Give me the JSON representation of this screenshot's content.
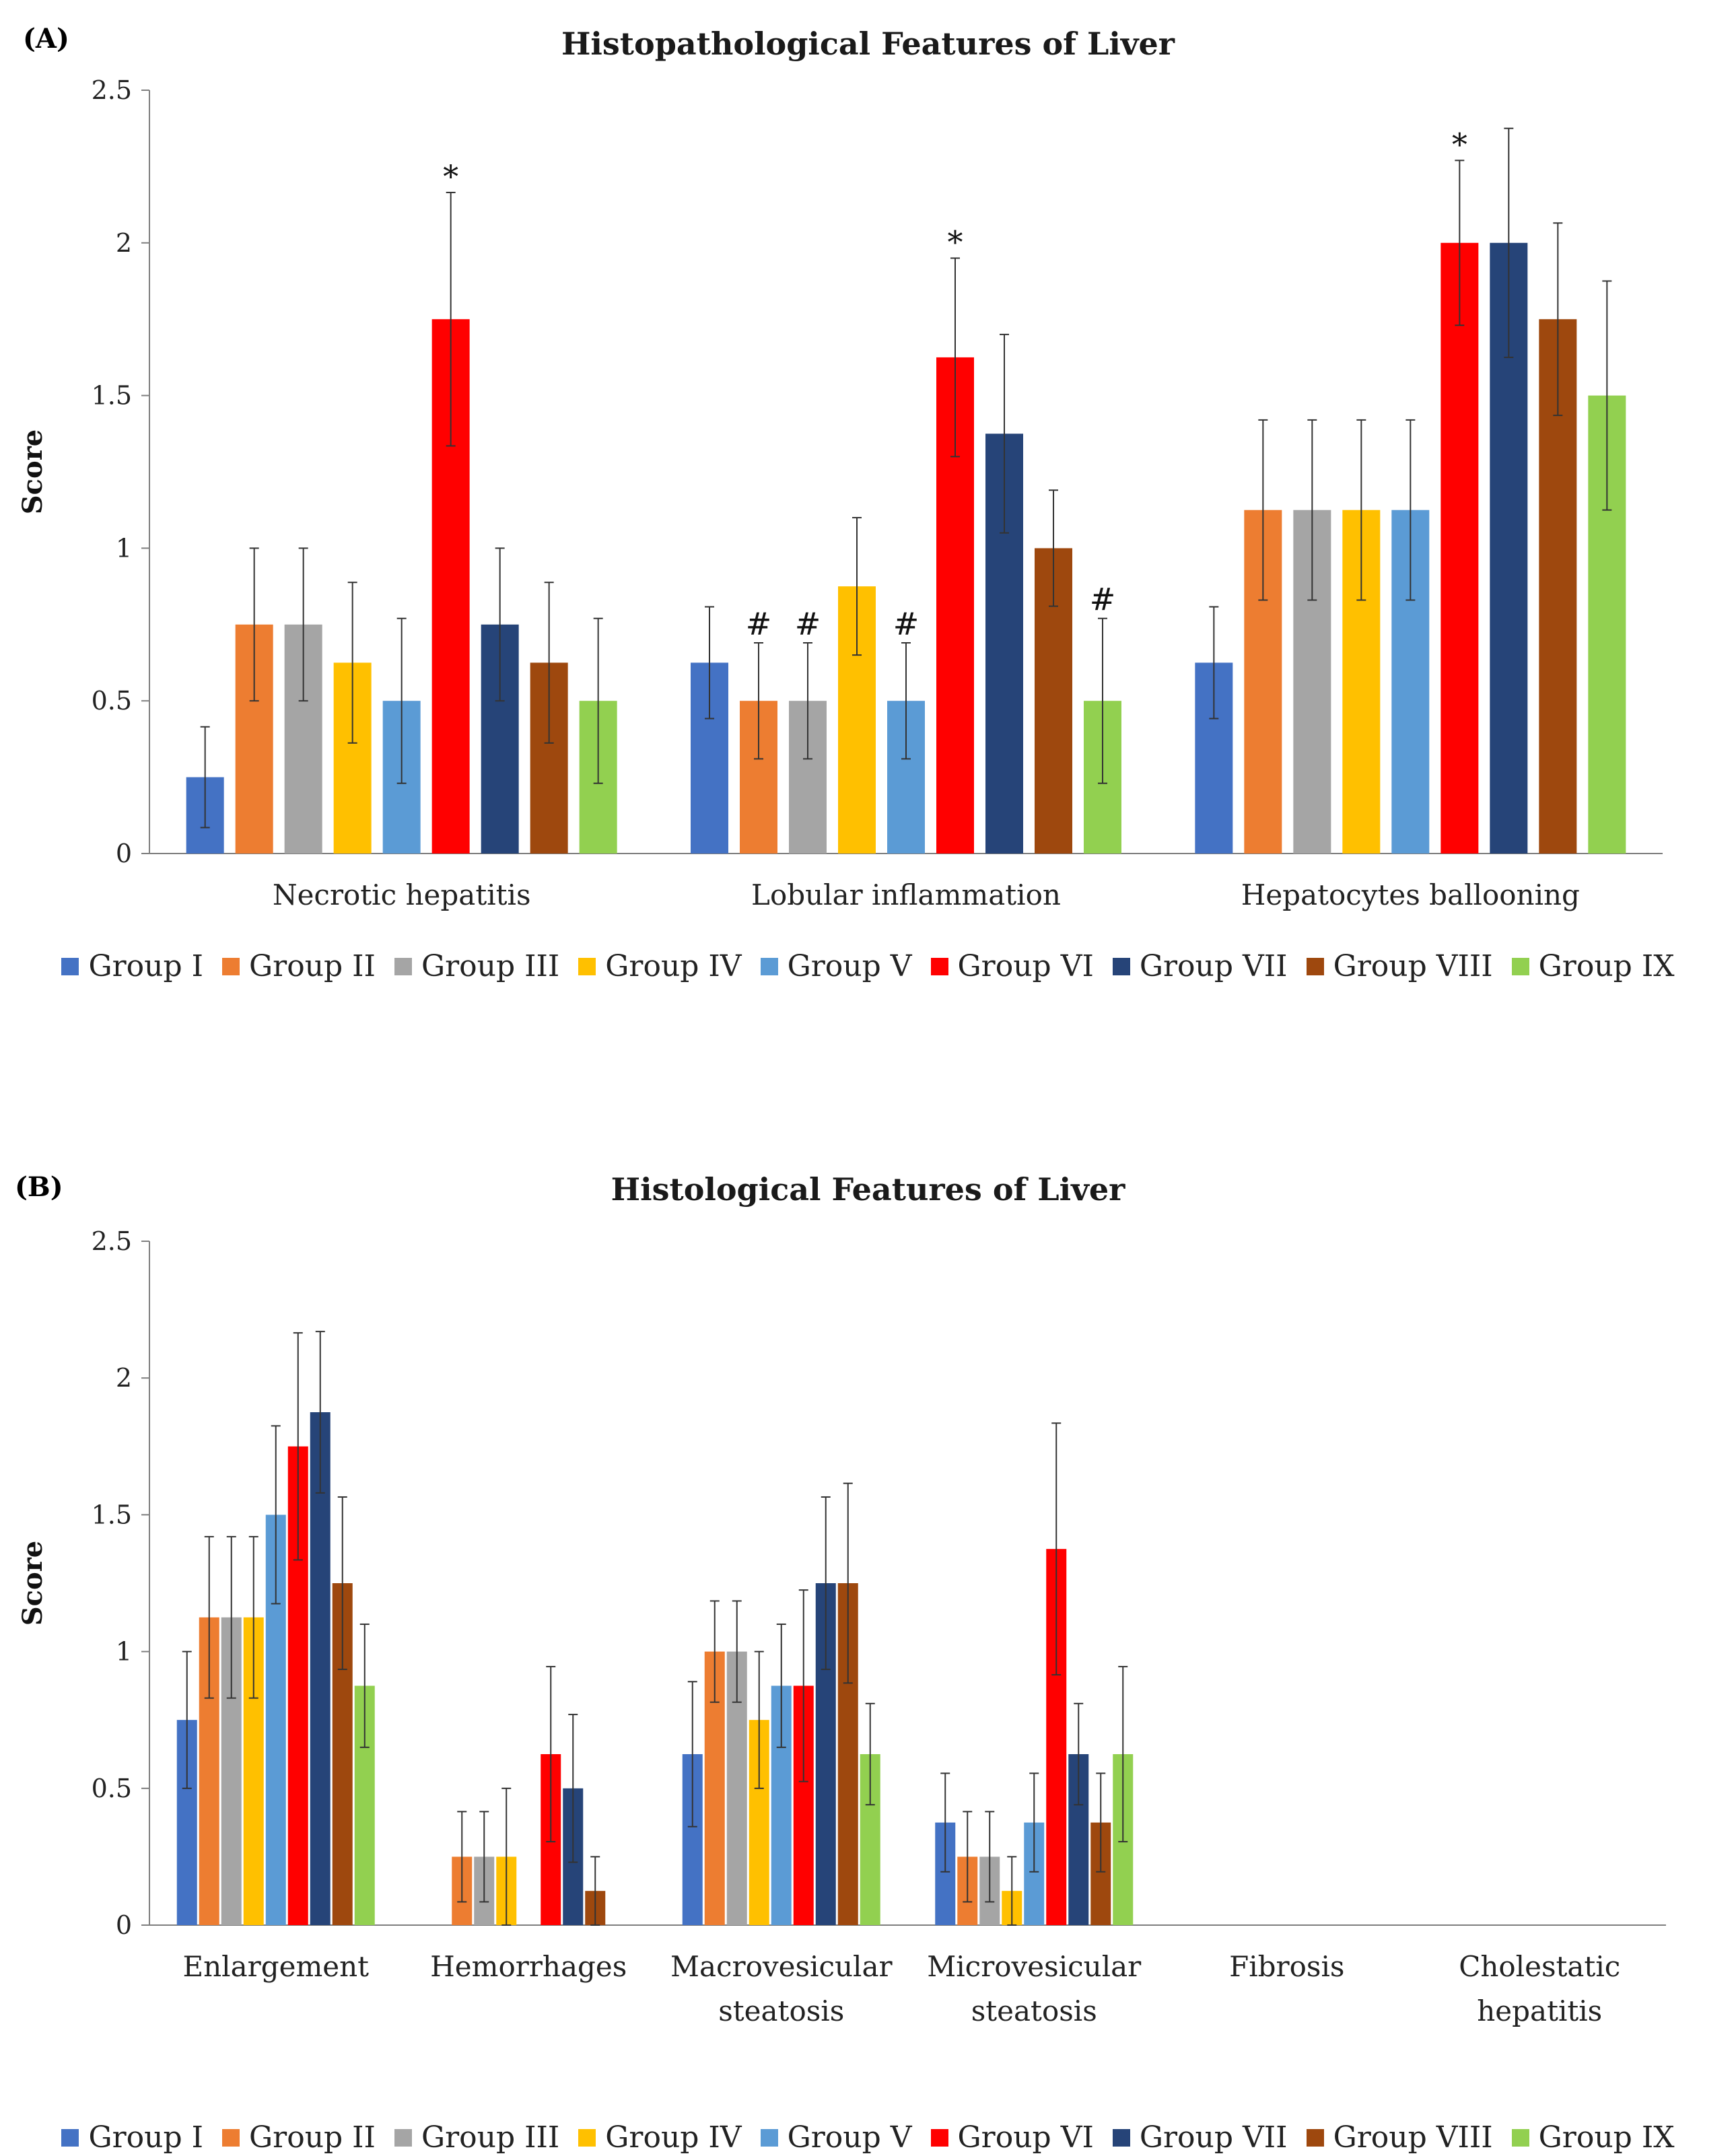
{
  "chart_data": [
    {
      "panel": "(A)",
      "type": "bar",
      "title": "Histopathological Features of Liver",
      "ylabel": "Score",
      "ylim": [
        0,
        2.5
      ],
      "yticks": [
        "0",
        "0.5",
        "1",
        "1.5",
        "2",
        "2.5"
      ],
      "grid": false,
      "legend_position": "bottom",
      "categories": [
        [
          "Necrotic hepatitis"
        ],
        [
          "Lobular inflammation"
        ],
        [
          "Hepatocytes ballooning"
        ]
      ],
      "series": [
        {
          "name": "Group I",
          "color": "#4472C4",
          "values": [
            0.25,
            0.625,
            0.625
          ],
          "errors": [
            0.165,
            0.183,
            0.183
          ],
          "markers": [
            "",
            "",
            ""
          ]
        },
        {
          "name": "Group II",
          "color": "#ED7D31",
          "values": [
            0.75,
            0.5,
            1.125
          ],
          "errors": [
            0.25,
            0.19,
            0.295
          ],
          "markers": [
            "",
            "#",
            ""
          ]
        },
        {
          "name": "Group III",
          "color": "#A5A5A5",
          "values": [
            0.75,
            0.5,
            1.125
          ],
          "errors": [
            0.25,
            0.19,
            0.295
          ],
          "markers": [
            "",
            "#",
            ""
          ]
        },
        {
          "name": "Group IV",
          "color": "#FFC000",
          "values": [
            0.625,
            0.875,
            1.125
          ],
          "errors": [
            0.263,
            0.225,
            0.295
          ],
          "markers": [
            "",
            "",
            ""
          ]
        },
        {
          "name": "Group V",
          "color": "#5B9BD5",
          "values": [
            0.5,
            0.5,
            1.125
          ],
          "errors": [
            0.27,
            0.19,
            0.295
          ],
          "markers": [
            "",
            "#",
            ""
          ]
        },
        {
          "name": "Group VI",
          "color": "#FF0000",
          "values": [
            1.75,
            1.625,
            2.0
          ],
          "errors": [
            0.415,
            0.325,
            0.27
          ],
          "markers": [
            "*",
            "*",
            "*"
          ]
        },
        {
          "name": "Group VII",
          "color": "#264478",
          "values": [
            0.75,
            1.375,
            2.0
          ],
          "errors": [
            0.25,
            0.325,
            0.375
          ],
          "markers": [
            "",
            "",
            ""
          ]
        },
        {
          "name": "Group VIII",
          "color": "#9E480E",
          "values": [
            0.625,
            1.0,
            1.75
          ],
          "errors": [
            0.263,
            0.19,
            0.315
          ],
          "markers": [
            "",
            "",
            ""
          ]
        },
        {
          "name": "Group IX",
          "color": "#92D050",
          "values": [
            0.5,
            0.5,
            1.5
          ],
          "errors": [
            0.27,
            0.27,
            0.375
          ],
          "markers": [
            "",
            "#",
            ""
          ]
        }
      ]
    },
    {
      "panel": "(B)",
      "type": "bar",
      "title": "Histological Features of Liver",
      "ylabel": "Score",
      "ylim": [
        0,
        2.5
      ],
      "yticks": [
        "0",
        "0.5",
        "1",
        "1.5",
        "2",
        "2.5"
      ],
      "grid": false,
      "legend_position": "bottom",
      "categories": [
        [
          "Enlargement"
        ],
        [
          "Hemorrhages"
        ],
        [
          "Macrovesicular",
          "steatosis"
        ],
        [
          "Microvesicular",
          "steatosis"
        ],
        [
          "Fibrosis"
        ],
        [
          "Cholestatic",
          "hepatitis"
        ]
      ],
      "series": [
        {
          "name": "Group I",
          "color": "#4472C4",
          "values": [
            0.75,
            0,
            0.625,
            0.375,
            0,
            0
          ],
          "errors": [
            0.25,
            0,
            0.265,
            0.18,
            0,
            0
          ]
        },
        {
          "name": "Group II",
          "color": "#ED7D31",
          "values": [
            1.125,
            0.25,
            1.0,
            0.25,
            0,
            0
          ],
          "errors": [
            0.295,
            0.165,
            0.185,
            0.165,
            0,
            0
          ]
        },
        {
          "name": "Group III",
          "color": "#A5A5A5",
          "values": [
            1.125,
            0.25,
            1.0,
            0.25,
            0,
            0
          ],
          "errors": [
            0.295,
            0.165,
            0.185,
            0.165,
            0,
            0
          ]
        },
        {
          "name": "Group IV",
          "color": "#FFC000",
          "values": [
            1.125,
            0.25,
            0.75,
            0.125,
            0,
            0
          ],
          "errors": [
            0.295,
            0.25,
            0.25,
            0.125,
            0,
            0
          ]
        },
        {
          "name": "Group V",
          "color": "#5B9BD5",
          "values": [
            1.5,
            0,
            0.875,
            0.375,
            0,
            0
          ],
          "errors": [
            0.325,
            0,
            0.225,
            0.18,
            0,
            0
          ]
        },
        {
          "name": "Group VI",
          "color": "#FF0000",
          "values": [
            1.75,
            0.625,
            0.875,
            1.375,
            0,
            0
          ],
          "errors": [
            0.415,
            0.32,
            0.35,
            0.46,
            0,
            0
          ]
        },
        {
          "name": "Group VII",
          "color": "#264478",
          "values": [
            1.875,
            0.5,
            1.25,
            0.625,
            0,
            0
          ],
          "errors": [
            0.295,
            0.27,
            0.315,
            0.185,
            0,
            0
          ]
        },
        {
          "name": "Group VIII",
          "color": "#9E480E",
          "values": [
            1.25,
            0.125,
            1.25,
            0.375,
            0,
            0
          ],
          "errors": [
            0.315,
            0.125,
            0.365,
            0.18,
            0,
            0
          ]
        },
        {
          "name": "Group IX",
          "color": "#92D050",
          "values": [
            0.875,
            0,
            0.625,
            0.625,
            0,
            0
          ],
          "errors": [
            0.225,
            0,
            0.185,
            0.32,
            0,
            0
          ]
        }
      ]
    }
  ]
}
